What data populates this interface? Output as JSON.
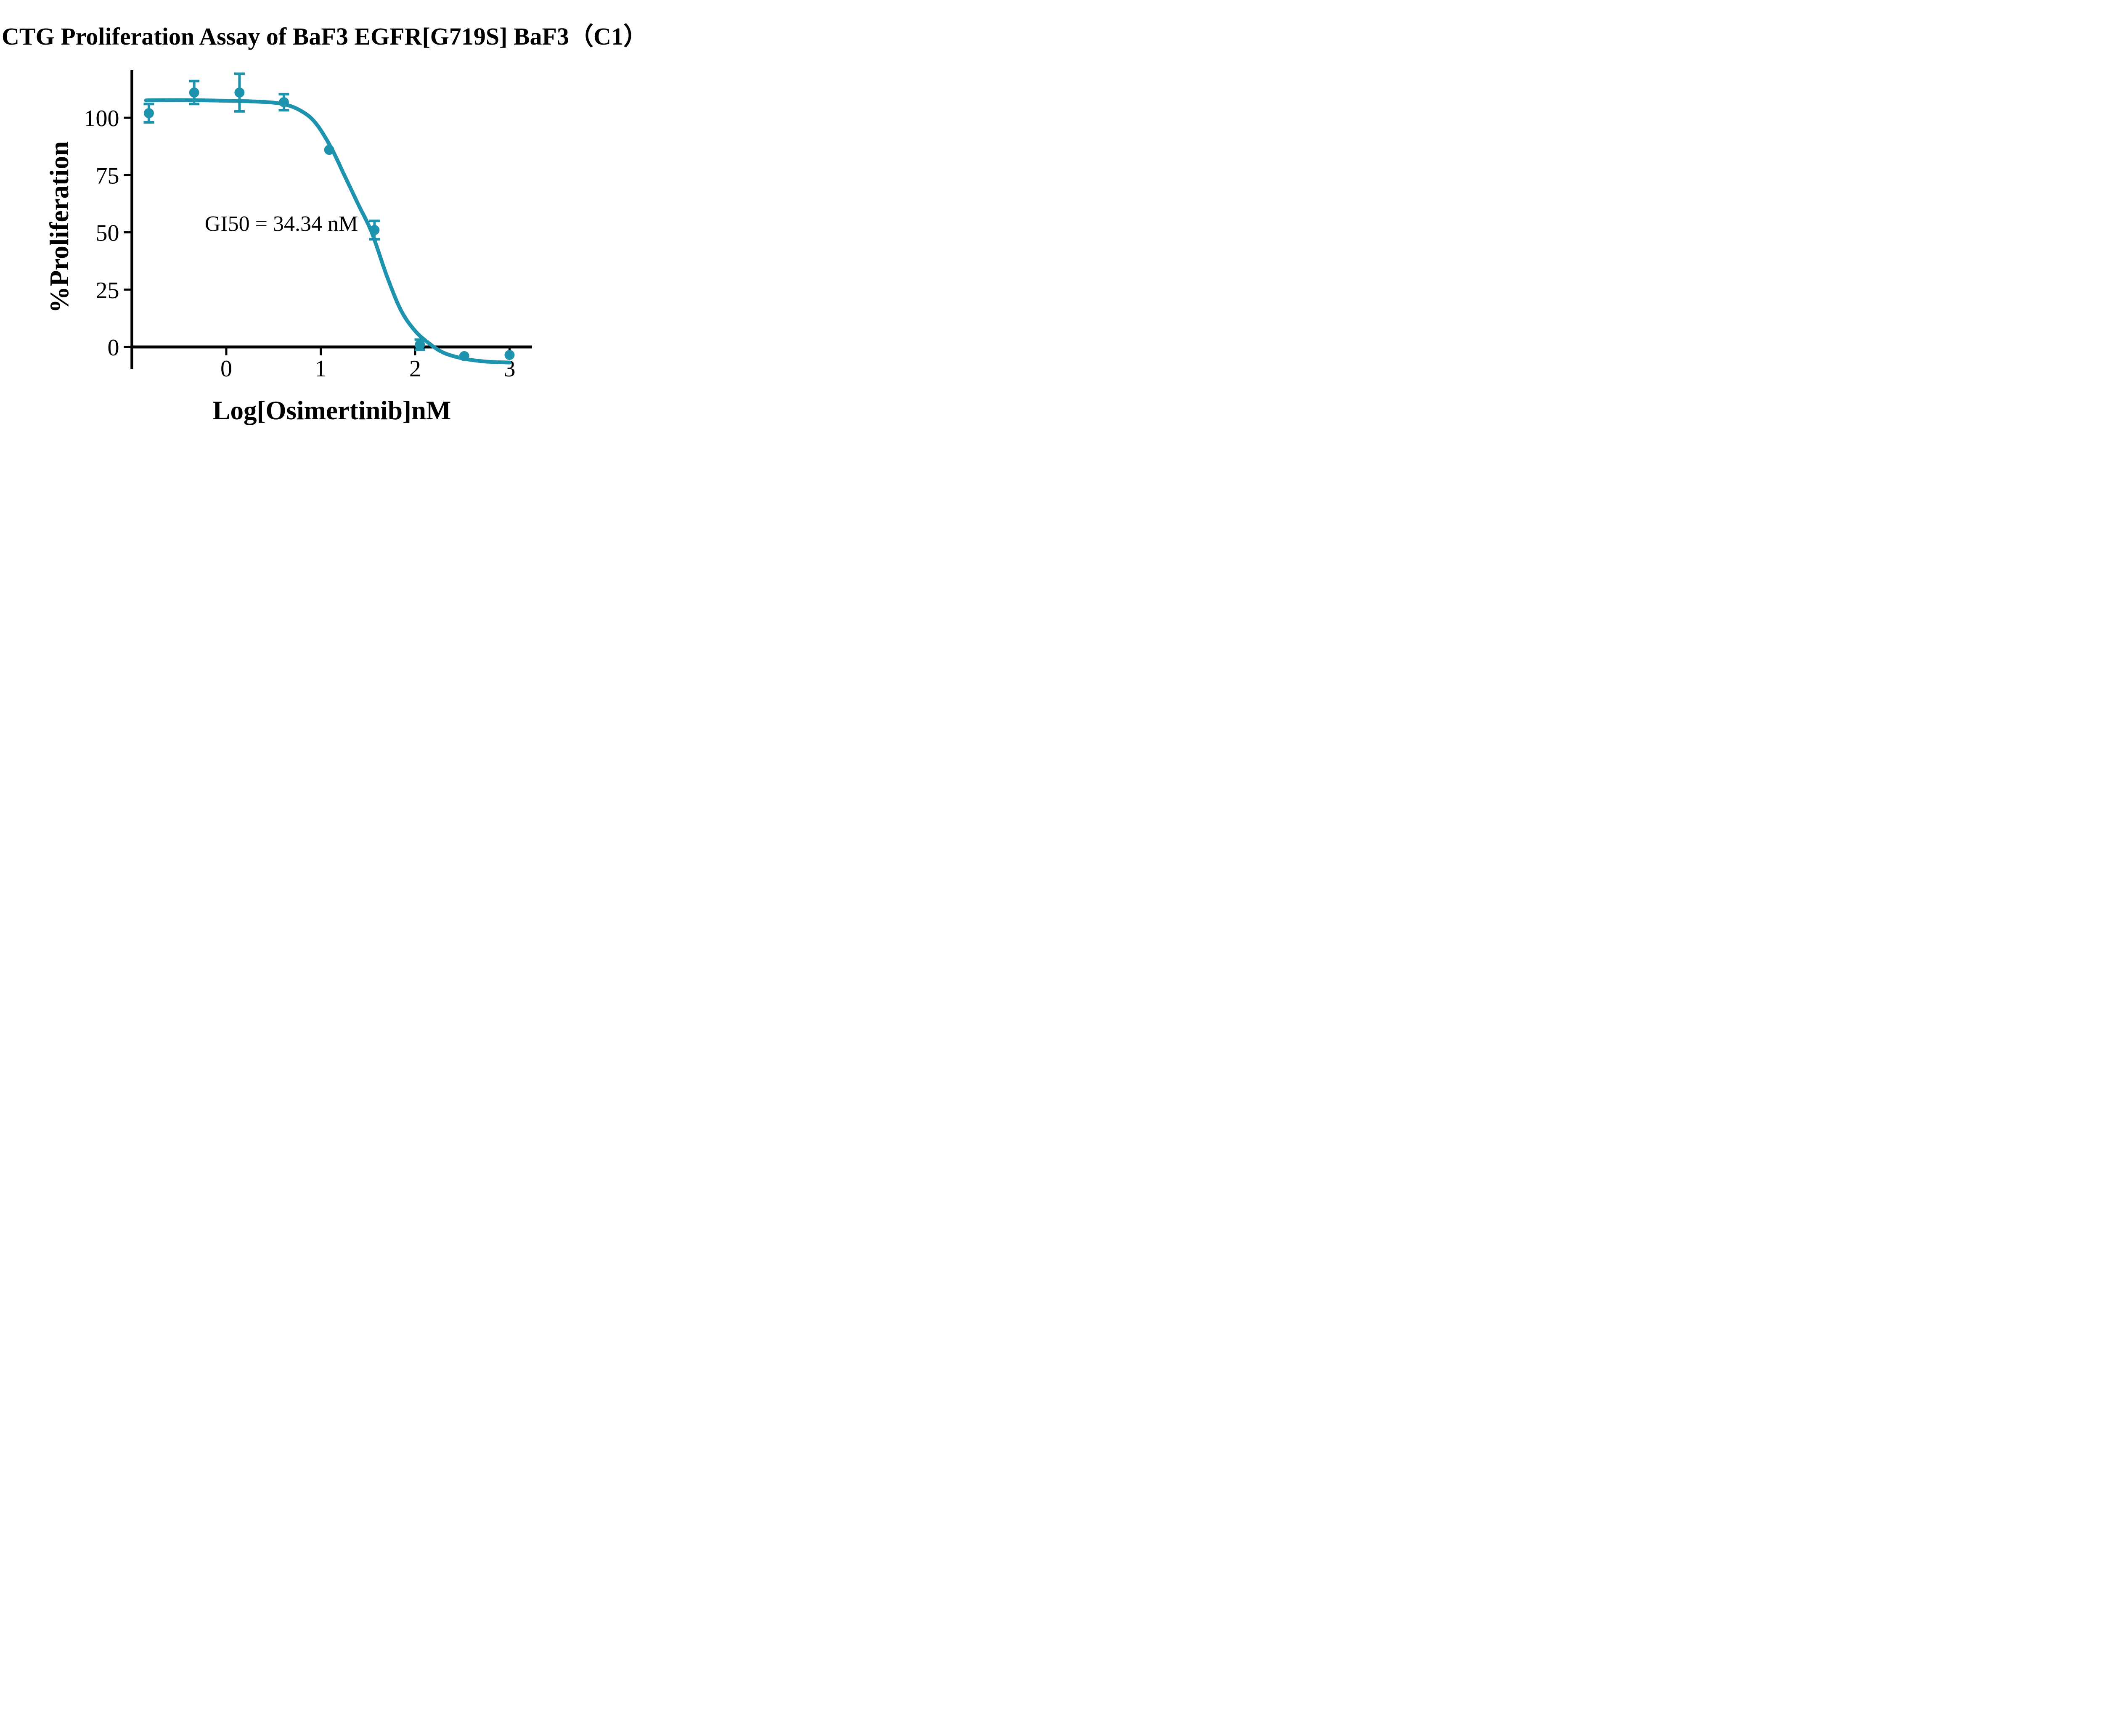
{
  "figure": {
    "background_color": "#ffffff",
    "accent_color": "#1e93ae",
    "axis_color": "#000000"
  },
  "chart_data": {
    "type": "scatter",
    "title": "CTG Proliferation Assay of BaF3 EGFR[G719S] BaF3（C1）",
    "xlabel": "Log[Osimertinib]nM",
    "ylabel": "%Proliferation",
    "annotation": {
      "text": "GI50 = 34.34 nM",
      "x": 0.57,
      "y": 52
    },
    "gi50_nM": 34.34,
    "x_ticks": [
      0,
      1,
      2,
      3
    ],
    "y_ticks": [
      0,
      25,
      50,
      75,
      100
    ],
    "xlim": [
      -1.0,
      3.24
    ],
    "ylim": [
      -9.5,
      120.4
    ],
    "grid": false,
    "legend_position": "none",
    "series": [
      {
        "name": "BaF3 EGFR[G719S] (C1)",
        "color": "#1e93ae",
        "marker": "circle",
        "x": [
          -0.82,
          -0.34,
          0.14,
          0.61,
          1.09,
          1.57,
          2.05,
          2.52,
          3.0
        ],
        "y": [
          102,
          111,
          111,
          106.8,
          86,
          51,
          1,
          -4,
          -3.5
        ],
        "y_err": [
          4,
          5,
          8.2,
          3.5,
          null,
          4,
          2.2,
          null,
          null
        ],
        "fit_curve": {
          "x": [
            -0.85,
            -0.5,
            -0.1,
            0.3,
            0.6,
            0.8,
            0.95,
            1.11,
            1.25,
            1.4,
            1.54,
            1.7,
            1.85,
            2.0,
            2.15,
            2.3,
            2.5,
            2.7,
            2.85,
            3.0
          ],
          "y": [
            107.6,
            107.7,
            107.5,
            107.1,
            106.0,
            102.8,
            97.5,
            87,
            75,
            62,
            50,
            31,
            16,
            7,
            1.5,
            -2.5,
            -5,
            -6.2,
            -6.6,
            -6.8
          ]
        }
      }
    ]
  }
}
